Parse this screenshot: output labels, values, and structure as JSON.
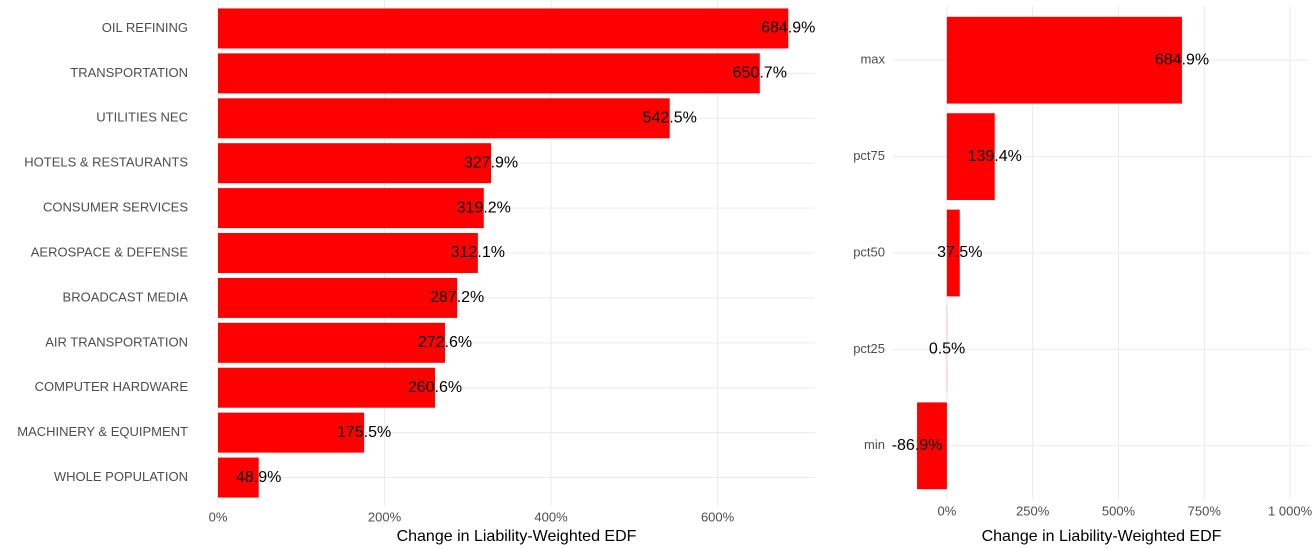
{
  "chart_data": [
    {
      "type": "bar",
      "orientation": "horizontal",
      "x_label": "Change in Liability-Weighted EDF",
      "color": "#ff0000",
      "grid": true,
      "categories": [
        "OIL REFINING",
        "TRANSPORTATION",
        "UTILITIES NEC",
        "HOTELS & RESTAURANTS",
        "CONSUMER SERVICES",
        "AEROSPACE & DEFENSE",
        "BROADCAST MEDIA",
        "AIR TRANSPORTATION",
        "COMPUTER HARDWARE",
        "MACHINERY & EQUIPMENT",
        "WHOLE POPULATION"
      ],
      "values": [
        684.9,
        650.7,
        542.5,
        327.9,
        319.2,
        312.1,
        287.2,
        272.6,
        260.6,
        175.5,
        48.9
      ],
      "value_labels": [
        "684.9%",
        "650.7%",
        "542.5%",
        "327.9%",
        "319.2%",
        "312.1%",
        "287.2%",
        "272.6%",
        "260.6%",
        "175.5%",
        "48.9%"
      ],
      "xlim": [
        0,
        717
      ],
      "xticks": [
        {
          "value": 0,
          "label": "0%"
        },
        {
          "value": 200,
          "label": "200%"
        },
        {
          "value": 400,
          "label": "400%"
        },
        {
          "value": 600,
          "label": "600%"
        }
      ]
    },
    {
      "type": "bar",
      "orientation": "horizontal",
      "x_label": "Change in Liability-Weighted EDF",
      "color": "#ff0000",
      "grid": true,
      "categories": [
        "max",
        "pct75",
        "pct50",
        "pct25",
        "min"
      ],
      "values": [
        684.9,
        139.4,
        37.5,
        0.5,
        -86.9
      ],
      "value_labels": [
        "684.9%",
        "139.4%",
        "37.5%",
        "0.5%",
        "-86.9%"
      ],
      "xlim": [
        -157,
        1058
      ],
      "xticks": [
        {
          "value": 0,
          "label": "0%"
        },
        {
          "value": 250,
          "label": "250%"
        },
        {
          "value": 500,
          "label": "500%"
        },
        {
          "value": 750,
          "label": "750%"
        },
        {
          "value": 1000,
          "label": "1 000%"
        }
      ]
    }
  ]
}
